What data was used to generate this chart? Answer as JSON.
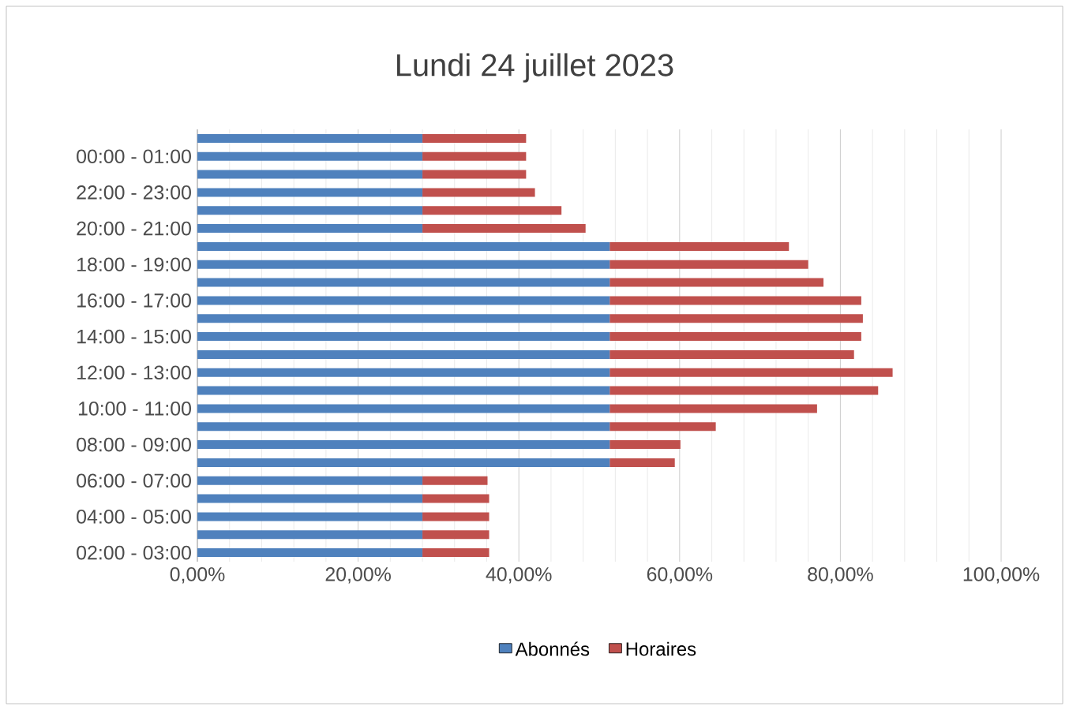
{
  "chart_data": {
    "type": "bar",
    "orientation": "horizontal",
    "stacked": true,
    "title": "Lundi 24 juillet 2023",
    "categories": [
      null,
      "00:00 - 01:00",
      null,
      "22:00 - 23:00",
      null,
      "20:00 - 21:00",
      null,
      "18:00 - 19:00",
      null,
      "16:00 - 17:00",
      null,
      "14:00 - 15:00",
      null,
      "12:00 - 13:00",
      null,
      "10:00 - 11:00",
      null,
      "08:00 - 09:00",
      null,
      "06:00 - 07:00",
      null,
      "04:00 - 05:00",
      null,
      "02:00 - 03:00"
    ],
    "series": [
      {
        "name": "Abonnés",
        "color": "#4f81bd",
        "values": [
          28,
          28,
          28,
          28,
          28,
          28,
          51.3,
          51.3,
          51.3,
          51.3,
          51.3,
          51.3,
          51.3,
          51.3,
          51.3,
          51.3,
          51.3,
          51.3,
          51.3,
          28,
          28,
          28,
          28,
          28
        ]
      },
      {
        "name": "Horaires",
        "color": "#c0504d",
        "values": [
          12.9,
          12.9,
          12.9,
          14,
          17.3,
          20.3,
          22.3,
          24.7,
          26.6,
          31.3,
          31.5,
          31.3,
          30.4,
          35.2,
          33.4,
          25.8,
          13.2,
          8.8,
          8.1,
          8.1,
          8.3,
          8.3,
          8.3,
          8.3
        ]
      }
    ],
    "xlim": [
      0,
      100
    ],
    "xticks": [
      {
        "value": 0,
        "label": "0,00%"
      },
      {
        "value": 20,
        "label": "20,00%"
      },
      {
        "value": 40,
        "label": "40,00%"
      },
      {
        "value": 60,
        "label": "60,00%"
      },
      {
        "value": 80,
        "label": "80,00%"
      },
      {
        "value": 100,
        "label": "100,00%"
      }
    ],
    "grid": "x",
    "legend": "bottom"
  }
}
